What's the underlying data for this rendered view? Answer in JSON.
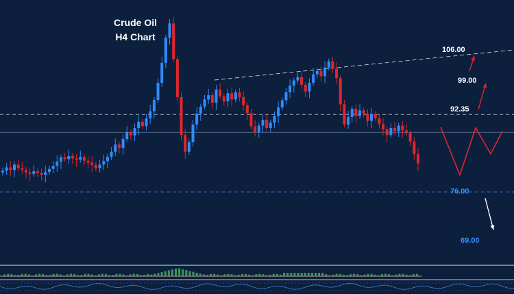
{
  "chart_data": {
    "type": "candlestick",
    "title_line1": "Crude Oil",
    "title_line2": "H4 Chart",
    "levels": [
      {
        "label": "106.00",
        "color": "#ffffff"
      },
      {
        "label": "99.00",
        "color": "#ffffff"
      },
      {
        "label": "92.35",
        "color": "#ffffff"
      },
      {
        "label": "76.00",
        "color": "#3d8bff"
      },
      {
        "label": "69.00",
        "color": "#3d8bff"
      }
    ],
    "trend": "ascending resistance line",
    "colors": {
      "background": "#0c1f3d",
      "bull": "#2f8cff",
      "bear": "#e0262b",
      "dashed_white": "#c8ccd8",
      "dashed_blue": "#3d6fb8",
      "projection": "#e0262b",
      "arrow_up": "#e0262b",
      "arrow_down": "#ffffff",
      "histogram": "#3a9a5a"
    },
    "ylim": [
      60,
      115
    ],
    "series": [
      {
        "phase": "base",
        "closes": [
          80.5,
          81.2,
          80.6,
          81.8,
          81.0,
          80.7,
          80.1,
          79.8,
          80.4,
          80.0,
          79.6,
          80.2,
          80.9,
          81.5,
          82.4,
          83.3,
          82.9,
          83.6,
          83.1,
          82.8,
          83.4,
          82.6,
          82.2,
          81.7,
          81.0,
          81.8,
          82.5,
          83.4
        ]
      },
      {
        "phase": "rally",
        "closes": [
          84.5,
          86.0,
          85.3,
          87.2,
          88.6,
          87.9,
          89.5,
          90.8,
          89.9,
          91.5,
          93.0,
          95.4,
          99.0,
          103.2,
          108.5,
          111.5,
          104.0,
          96.0,
          88.0,
          84.5,
          86.5,
          90.2
        ]
      },
      {
        "phase": "consolidation",
        "closes": [
          92.5,
          94.0,
          95.5,
          96.4,
          94.8,
          97.6,
          96.2,
          95.1,
          96.8,
          95.5,
          97.0,
          96.0,
          94.3,
          92.6,
          89.8,
          88.6,
          90.0,
          91.2,
          89.5,
          90.6,
          92.0,
          93.8,
          95.3,
          97.0,
          98.4,
          99.5,
          100.2,
          98.6,
          97.2,
          99.0,
          100.8,
          101.5,
          100.4,
          102.2,
          103.5,
          102.0
        ]
      },
      {
        "phase": "pullback",
        "closes": [
          100.0,
          94.5,
          90.2,
          91.8,
          93.5,
          92.0,
          93.2,
          92.5,
          91.0,
          92.4,
          91.5,
          90.3,
          89.2,
          88.0,
          89.5,
          88.8,
          90.0,
          89.0,
          88.4,
          86.6,
          84.0,
          82.0
        ]
      }
    ]
  }
}
